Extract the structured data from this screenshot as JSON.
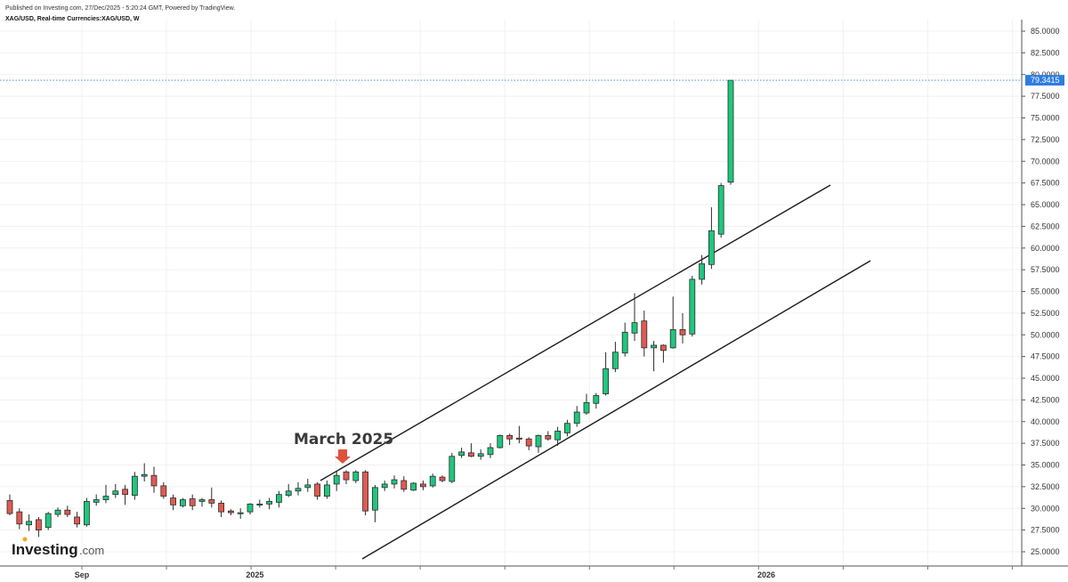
{
  "header": {
    "published": "Published on Investing.com, 27/Dec/2025 - 5:20:24 GMT, Powered by TradingView.",
    "symbol": "XAG/USD, Real-time Currencies:XAG/USD, W"
  },
  "logo": {
    "name": "Investing",
    "suffix": ".com"
  },
  "annotation": {
    "text": "March 2025",
    "arrow_color": "#e0513c"
  },
  "colors": {
    "up": "#1fc77e",
    "down": "#e05a52",
    "border": "#2b2b2b",
    "price_line": "#4a90e2",
    "price_tag": "#2e7de0"
  },
  "chart_data": {
    "type": "candlestick",
    "title": "",
    "xlabel": "",
    "ylabel": "",
    "ylim": [
      24,
      86
    ],
    "y_ticks": [
      "25.0000",
      "27.5000",
      "30.0000",
      "32.5000",
      "35.0000",
      "37.5000",
      "40.0000",
      "42.5000",
      "45.0000",
      "47.5000",
      "50.0000",
      "52.5000",
      "55.0000",
      "57.5000",
      "60.0000",
      "62.5000",
      "65.0000",
      "67.5000",
      "70.0000",
      "72.5000",
      "75.0000",
      "77.5000",
      "80.0000",
      "82.5000",
      "85.0000"
    ],
    "x_labels": [
      {
        "text": "Sep",
        "candle_index": 7.5
      },
      {
        "text": "2025",
        "candle_index": 25.5
      },
      {
        "text": "2026",
        "candle_index": 78.7
      }
    ],
    "last_price": "79.3415",
    "grid": true,
    "candles": [
      {
        "o": 30.9,
        "h": 31.6,
        "l": 29.2,
        "c": 29.4
      },
      {
        "o": 29.6,
        "h": 30.0,
        "l": 27.6,
        "c": 28.2
      },
      {
        "o": 28.1,
        "h": 29.3,
        "l": 27.4,
        "c": 28.5
      },
      {
        "o": 28.7,
        "h": 29.0,
        "l": 26.7,
        "c": 27.5
      },
      {
        "o": 27.8,
        "h": 29.6,
        "l": 27.5,
        "c": 29.4
      },
      {
        "o": 29.3,
        "h": 30.1,
        "l": 29.0,
        "c": 29.8
      },
      {
        "o": 29.8,
        "h": 30.3,
        "l": 29.0,
        "c": 29.3
      },
      {
        "o": 29.0,
        "h": 29.6,
        "l": 27.8,
        "c": 28.2
      },
      {
        "o": 28.1,
        "h": 31.2,
        "l": 27.9,
        "c": 30.8
      },
      {
        "o": 30.7,
        "h": 31.6,
        "l": 30.3,
        "c": 31.0
      },
      {
        "o": 31.0,
        "h": 32.7,
        "l": 30.6,
        "c": 31.4
      },
      {
        "o": 31.6,
        "h": 32.8,
        "l": 31.2,
        "c": 32.0
      },
      {
        "o": 32.2,
        "h": 32.7,
        "l": 30.4,
        "c": 31.6
      },
      {
        "o": 31.5,
        "h": 34.2,
        "l": 31.0,
        "c": 33.7
      },
      {
        "o": 33.7,
        "h": 35.2,
        "l": 33.1,
        "c": 33.9
      },
      {
        "o": 33.8,
        "h": 34.8,
        "l": 31.8,
        "c": 32.6
      },
      {
        "o": 32.6,
        "h": 33.0,
        "l": 31.1,
        "c": 31.4
      },
      {
        "o": 31.2,
        "h": 31.6,
        "l": 29.8,
        "c": 30.4
      },
      {
        "o": 30.3,
        "h": 31.2,
        "l": 30.1,
        "c": 31.0
      },
      {
        "o": 31.1,
        "h": 31.6,
        "l": 29.8,
        "c": 30.3
      },
      {
        "o": 30.8,
        "h": 31.2,
        "l": 30.2,
        "c": 31.0
      },
      {
        "o": 31.0,
        "h": 32.4,
        "l": 30.1,
        "c": 30.6
      },
      {
        "o": 30.6,
        "h": 30.9,
        "l": 29.0,
        "c": 29.6
      },
      {
        "o": 29.7,
        "h": 29.9,
        "l": 29.2,
        "c": 29.5
      },
      {
        "o": 29.5,
        "h": 30.0,
        "l": 28.8,
        "c": 29.5
      },
      {
        "o": 29.6,
        "h": 30.6,
        "l": 29.3,
        "c": 30.5
      },
      {
        "o": 30.4,
        "h": 31.0,
        "l": 30.1,
        "c": 30.5
      },
      {
        "o": 30.5,
        "h": 31.2,
        "l": 29.9,
        "c": 30.8
      },
      {
        "o": 30.7,
        "h": 32.0,
        "l": 30.1,
        "c": 31.6
      },
      {
        "o": 31.5,
        "h": 32.8,
        "l": 31.3,
        "c": 32.0
      },
      {
        "o": 32.0,
        "h": 33.0,
        "l": 31.5,
        "c": 32.3
      },
      {
        "o": 32.4,
        "h": 33.4,
        "l": 31.9,
        "c": 32.7
      },
      {
        "o": 32.8,
        "h": 33.0,
        "l": 31.0,
        "c": 31.4
      },
      {
        "o": 31.4,
        "h": 33.2,
        "l": 31.1,
        "c": 32.7
      },
      {
        "o": 32.8,
        "h": 34.3,
        "l": 32.0,
        "c": 33.8
      },
      {
        "o": 34.2,
        "h": 34.4,
        "l": 32.8,
        "c": 33.3
      },
      {
        "o": 33.2,
        "h": 34.4,
        "l": 32.9,
        "c": 34.2
      },
      {
        "o": 34.2,
        "h": 34.4,
        "l": 29.2,
        "c": 29.7
      },
      {
        "o": 29.8,
        "h": 32.7,
        "l": 28.4,
        "c": 32.4
      },
      {
        "o": 32.4,
        "h": 33.2,
        "l": 32.0,
        "c": 32.8
      },
      {
        "o": 32.8,
        "h": 33.8,
        "l": 32.3,
        "c": 33.3
      },
      {
        "o": 33.2,
        "h": 33.7,
        "l": 31.9,
        "c": 32.2
      },
      {
        "o": 32.1,
        "h": 33.0,
        "l": 32.0,
        "c": 32.9
      },
      {
        "o": 32.8,
        "h": 33.2,
        "l": 32.1,
        "c": 32.5
      },
      {
        "o": 32.6,
        "h": 34.0,
        "l": 32.4,
        "c": 33.7
      },
      {
        "o": 33.6,
        "h": 33.8,
        "l": 33.0,
        "c": 33.2
      },
      {
        "o": 33.1,
        "h": 36.4,
        "l": 32.9,
        "c": 36.0
      },
      {
        "o": 36.1,
        "h": 37.0,
        "l": 35.8,
        "c": 36.5
      },
      {
        "o": 36.4,
        "h": 37.5,
        "l": 35.9,
        "c": 36.0
      },
      {
        "o": 36.0,
        "h": 36.8,
        "l": 35.6,
        "c": 36.3
      },
      {
        "o": 36.2,
        "h": 37.5,
        "l": 35.8,
        "c": 37.0
      },
      {
        "o": 37.0,
        "h": 38.5,
        "l": 36.9,
        "c": 38.4
      },
      {
        "o": 38.4,
        "h": 38.6,
        "l": 37.3,
        "c": 38.0
      },
      {
        "o": 38.1,
        "h": 39.5,
        "l": 37.5,
        "c": 38.0
      },
      {
        "o": 38.0,
        "h": 38.2,
        "l": 36.7,
        "c": 37.2
      },
      {
        "o": 37.1,
        "h": 38.5,
        "l": 36.4,
        "c": 38.4
      },
      {
        "o": 38.4,
        "h": 38.9,
        "l": 37.8,
        "c": 38.0
      },
      {
        "o": 37.9,
        "h": 39.4,
        "l": 37.2,
        "c": 38.9
      },
      {
        "o": 38.7,
        "h": 40.2,
        "l": 38.3,
        "c": 39.8
      },
      {
        "o": 39.8,
        "h": 41.8,
        "l": 39.4,
        "c": 41.1
      },
      {
        "o": 41.0,
        "h": 43.2,
        "l": 40.8,
        "c": 42.2
      },
      {
        "o": 42.1,
        "h": 43.3,
        "l": 41.5,
        "c": 43.0
      },
      {
        "o": 43.2,
        "h": 48.0,
        "l": 43.0,
        "c": 46.1
      },
      {
        "o": 46.1,
        "h": 49.2,
        "l": 45.7,
        "c": 48.0
      },
      {
        "o": 47.9,
        "h": 51.4,
        "l": 47.5,
        "c": 50.3
      },
      {
        "o": 50.2,
        "h": 54.8,
        "l": 49.3,
        "c": 51.4
      },
      {
        "o": 51.6,
        "h": 52.8,
        "l": 47.5,
        "c": 48.5
      },
      {
        "o": 48.5,
        "h": 49.3,
        "l": 45.8,
        "c": 48.8
      },
      {
        "o": 48.8,
        "h": 48.9,
        "l": 46.8,
        "c": 48.2
      },
      {
        "o": 48.5,
        "h": 54.4,
        "l": 48.4,
        "c": 50.6
      },
      {
        "o": 50.6,
        "h": 52.5,
        "l": 49.0,
        "c": 50.0
      },
      {
        "o": 50.1,
        "h": 56.8,
        "l": 49.8,
        "c": 56.4
      },
      {
        "o": 56.4,
        "h": 59.2,
        "l": 55.8,
        "c": 58.2
      },
      {
        "o": 58.1,
        "h": 64.7,
        "l": 57.6,
        "c": 62.0
      },
      {
        "o": 61.6,
        "h": 67.5,
        "l": 61.2,
        "c": 67.2
      },
      {
        "o": 67.6,
        "h": 79.3415,
        "l": 67.3,
        "c": 79.3415
      }
    ]
  }
}
